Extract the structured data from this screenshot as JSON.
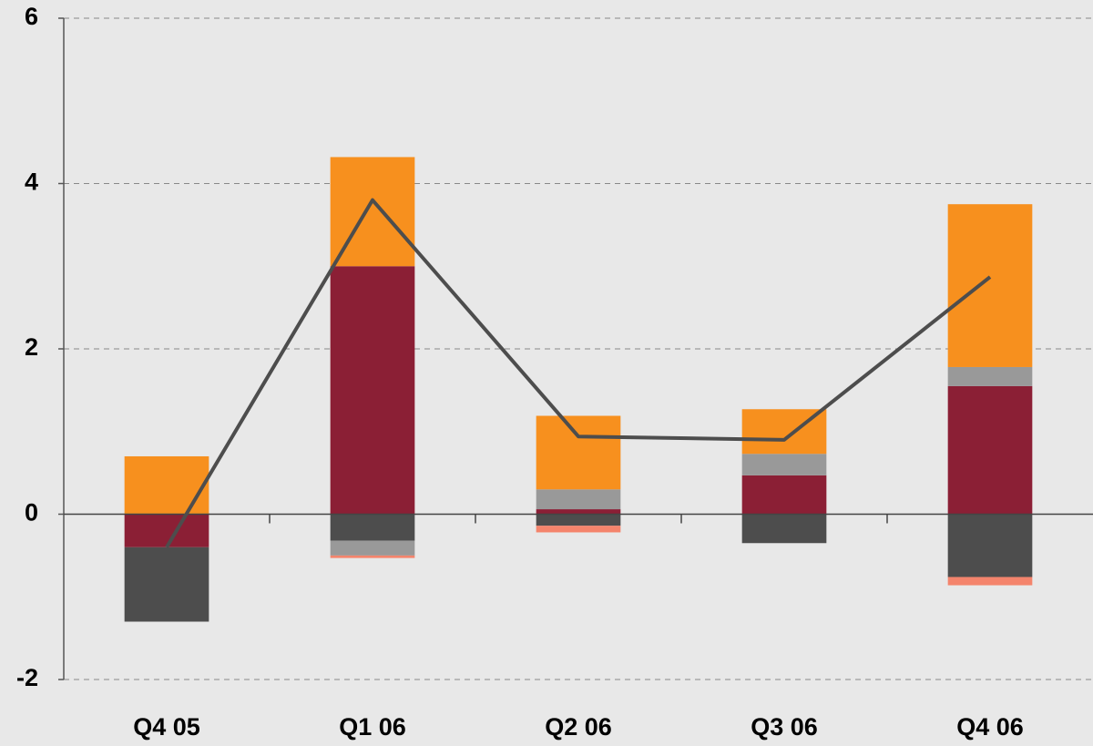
{
  "chart_data": {
    "type": "bar",
    "stacked": true,
    "categories": [
      "Q4 05",
      "Q1 06",
      "Q2 06",
      "Q3 06",
      "Q4 06"
    ],
    "series": [
      {
        "color": "#8b1f35",
        "values": [
          -0.4,
          3.0,
          0.06,
          0.47,
          1.55
        ]
      },
      {
        "color": "#4d4d4d",
        "values": [
          -0.9,
          -0.32,
          -0.14,
          -0.35,
          -0.76
        ]
      },
      {
        "color": "#999999",
        "values": [
          0,
          -0.18,
          0.24,
          0.26,
          0.23
        ]
      },
      {
        "color": "#f4846c",
        "values": [
          0,
          -0.03,
          -0.08,
          0,
          -0.1
        ]
      },
      {
        "color": "#f7901e",
        "values": [
          0.7,
          1.32,
          0.89,
          0.54,
          1.97
        ]
      },
      {
        "type": "line",
        "color": "#4d4d4d",
        "values": [
          -0.4,
          3.8,
          0.94,
          0.9,
          2.87
        ]
      }
    ],
    "ylim": [
      -2,
      6
    ],
    "yticks": [
      -2,
      0,
      2,
      4,
      6
    ],
    "grid": true
  }
}
